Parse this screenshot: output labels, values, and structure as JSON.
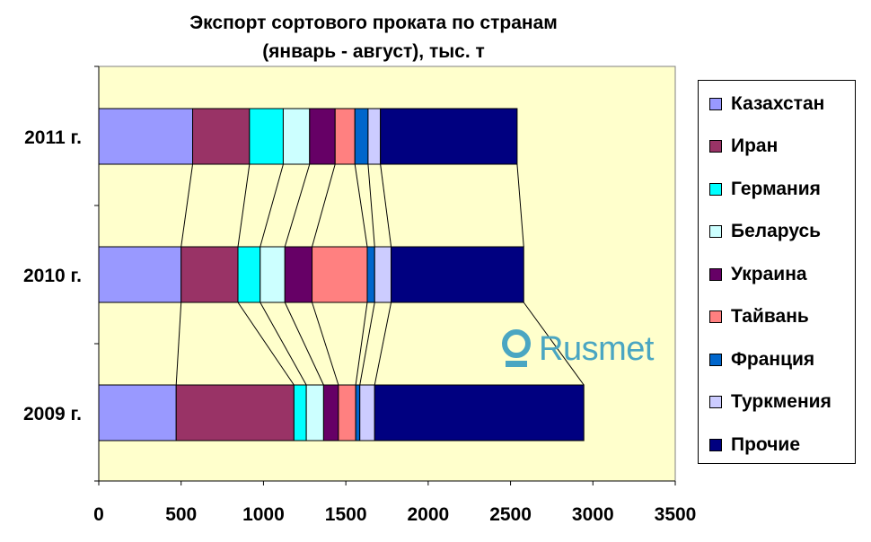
{
  "chart_data": {
    "type": "bar",
    "orientation": "horizontal",
    "stacked": true,
    "title": "Экспорт сортового проката по странам",
    "subtitle": "(январь - август), тыс. т",
    "categories": [
      "2011 г.",
      "2010 г.",
      "2009 г."
    ],
    "xlim": [
      0,
      3500
    ],
    "xticks": [
      0,
      500,
      1000,
      1500,
      2000,
      2500,
      3000,
      3500
    ],
    "series": [
      {
        "name": "Казахстан",
        "color": "#9999ff",
        "values": [
          570,
          500,
          470
        ]
      },
      {
        "name": "Иран",
        "color": "#993366",
        "values": [
          345,
          345,
          715
        ]
      },
      {
        "name": "Германия",
        "color": "#00ffff",
        "values": [
          205,
          135,
          75
        ]
      },
      {
        "name": "Беларусь",
        "color": "#ccffff",
        "values": [
          160,
          150,
          105
        ]
      },
      {
        "name": "Украина",
        "color": "#660066",
        "values": [
          155,
          165,
          90
        ]
      },
      {
        "name": "Тайвань",
        "color": "#ff8080",
        "values": [
          120,
          335,
          105
        ]
      },
      {
        "name": "Франция",
        "color": "#0066cc",
        "values": [
          80,
          45,
          25
        ]
      },
      {
        "name": "Туркмения",
        "color": "#ccccff",
        "values": [
          75,
          100,
          90
        ]
      },
      {
        "name": "Прочие",
        "color": "#000080",
        "values": [
          830,
          805,
          1270
        ]
      }
    ],
    "plot_background": "#ffffcc",
    "series_lines": true,
    "grid": false,
    "legend_position": "right"
  },
  "watermark": {
    "text": "Rusmet",
    "icon": "rusmet-logo-icon",
    "color": "#4aa6c2"
  }
}
